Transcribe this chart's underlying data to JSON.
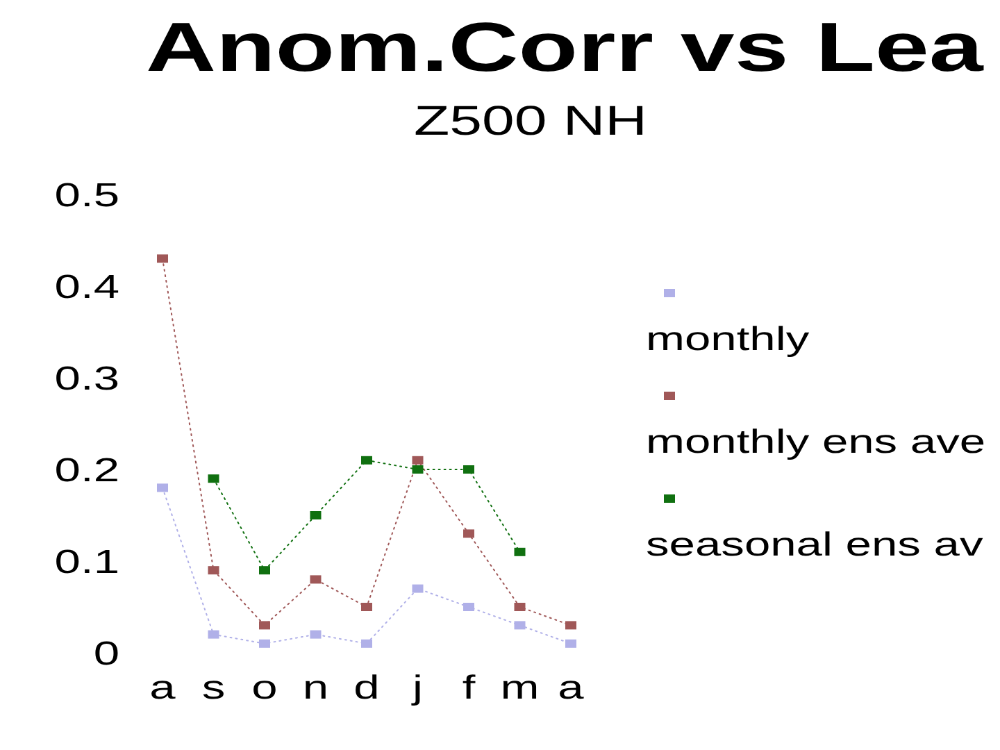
{
  "chart_data": {
    "type": "line",
    "title": "Anom.Corr vs Lea",
    "subtitle": "Z500 NH",
    "categories": [
      "a",
      "s",
      "o",
      "n",
      "d",
      "j",
      "f",
      "m",
      "a"
    ],
    "series": [
      {
        "name": "monthly",
        "color": "#b0b0e8",
        "values": [
          0.18,
          0.02,
          0.01,
          0.02,
          0.01,
          0.07,
          0.05,
          0.03,
          0.01
        ]
      },
      {
        "name": "monthly ens ave",
        "color": "#a05858",
        "values": [
          0.43,
          0.09,
          0.03,
          0.08,
          0.05,
          0.21,
          0.13,
          0.05,
          0.03
        ]
      },
      {
        "name": "seasonal ens av",
        "color": "#107010",
        "values": [
          null,
          0.19,
          0.09,
          0.15,
          0.21,
          0.2,
          0.2,
          0.11,
          null
        ]
      }
    ],
    "ylim": [
      0,
      0.5
    ],
    "yticks": [
      0,
      0.1,
      0.2,
      0.3,
      0.4,
      0.5
    ],
    "legend": "right",
    "marker": "square",
    "line_style": "dotted"
  }
}
